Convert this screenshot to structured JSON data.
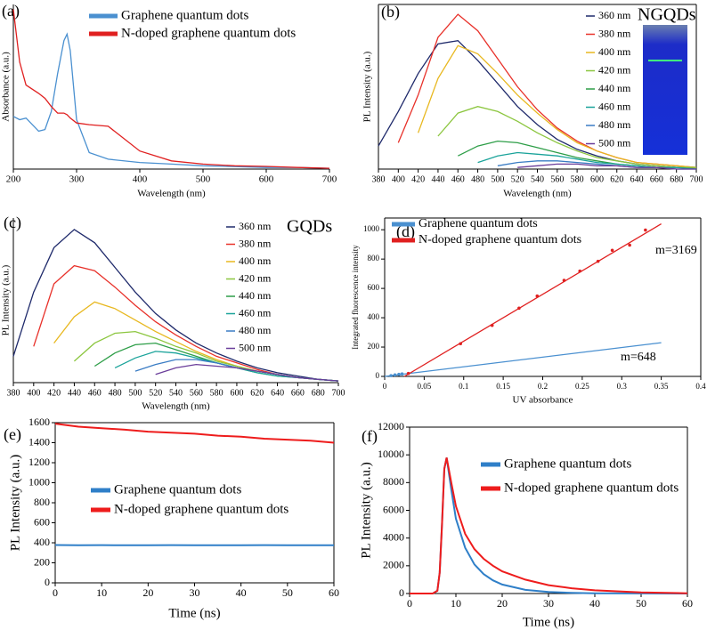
{
  "chart_data": [
    {
      "type": "line",
      "panel_label": "(a)",
      "xlabel": "Wavelength (nm)",
      "ylabel": "Absorbance (a.u.)",
      "x": [
        200,
        210,
        220,
        240,
        250,
        260,
        270,
        280,
        285,
        290,
        300,
        320,
        350,
        400,
        450,
        500,
        550,
        600,
        650,
        700
      ],
      "xlim": [
        200,
        700
      ],
      "xticks": [
        200,
        300,
        400,
        500,
        600,
        700
      ],
      "ylim": [
        0,
        100
      ],
      "series": [
        {
          "name": "Graphene quantum dots",
          "color": "#4a90d0",
          "values": [
            32,
            30,
            31,
            23,
            24,
            35,
            58,
            78,
            82,
            72,
            30,
            10,
            6,
            4,
            3,
            2,
            1.5,
            1,
            1,
            0.5
          ]
        },
        {
          "name": "N-doped graphene quantum dots",
          "color": "#e02020",
          "values": [
            97,
            65,
            51,
            46,
            43,
            38,
            34,
            34,
            33,
            31,
            28,
            27,
            26,
            11,
            5,
            3,
            2,
            1.6,
            1,
            0.5
          ]
        }
      ]
    },
    {
      "type": "line",
      "panel_label": "(b)",
      "xlabel": "Wavelength (nm)",
      "ylabel": "PL Intensity (a.u.)",
      "annotations": [
        {
          "text": "NGQDs",
          "color": "#000000"
        }
      ],
      "x": [
        380,
        400,
        420,
        440,
        460,
        480,
        500,
        520,
        540,
        560,
        580,
        600,
        620,
        640,
        660,
        680,
        700
      ],
      "xlim": [
        380,
        700
      ],
      "xticks": [
        380,
        400,
        420,
        440,
        460,
        480,
        500,
        520,
        540,
        560,
        580,
        600,
        620,
        640,
        660,
        680,
        700
      ],
      "ylim": [
        0,
        100
      ],
      "series": [
        {
          "name": "360 nm",
          "color": "#1f2a6b",
          "values": [
            14,
            35,
            58,
            76,
            78,
            66,
            52,
            38,
            27,
            18,
            12,
            8,
            5,
            3,
            2,
            1,
            1
          ]
        },
        {
          "name": "380 nm",
          "color": "#e8312a",
          "values": [
            null,
            16,
            45,
            80,
            94,
            84,
            67,
            50,
            36,
            25,
            17,
            11,
            7,
            4,
            3,
            2,
            1
          ]
        },
        {
          "name": "400 nm",
          "color": "#e8b820",
          "values": [
            null,
            null,
            22,
            55,
            75,
            70,
            58,
            45,
            34,
            24,
            16,
            11,
            7,
            4,
            3,
            2,
            1
          ]
        },
        {
          "name": "420 nm",
          "color": "#8cc63f",
          "values": [
            null,
            null,
            null,
            20,
            34,
            38,
            35,
            29,
            22,
            16,
            11,
            7,
            5,
            3,
            2,
            1,
            1
          ]
        },
        {
          "name": "440 nm",
          "color": "#2e9e48",
          "values": [
            null,
            null,
            null,
            null,
            8,
            14,
            17,
            16,
            13,
            10,
            7,
            5,
            3,
            2,
            1,
            1,
            0
          ]
        },
        {
          "name": "460 nm",
          "color": "#1aa39a",
          "values": [
            null,
            null,
            null,
            null,
            null,
            4,
            8,
            10,
            9,
            8,
            6,
            4,
            3,
            2,
            1,
            1,
            0
          ]
        },
        {
          "name": "480 nm",
          "color": "#3a7cc4",
          "values": [
            null,
            null,
            null,
            null,
            null,
            null,
            2,
            4,
            5,
            5,
            4,
            3,
            2,
            1,
            1,
            0,
            0
          ]
        },
        {
          "name": "500 nm",
          "color": "#6a3d9a",
          "values": [
            null,
            null,
            null,
            null,
            null,
            null,
            null,
            1,
            2,
            3,
            3,
            2,
            2,
            1,
            1,
            0,
            0
          ]
        }
      ]
    },
    {
      "type": "line",
      "panel_label": "(c)",
      "xlabel": "Wavelength (nm)",
      "ylabel": "PL Intensity (a.u.)",
      "annotations": [
        {
          "text": "GQDs",
          "color": "#000000"
        }
      ],
      "x": [
        380,
        400,
        420,
        440,
        460,
        480,
        500,
        520,
        540,
        560,
        580,
        600,
        620,
        640,
        660,
        680,
        700
      ],
      "xlim": [
        380,
        700
      ],
      "xticks": [
        380,
        400,
        420,
        440,
        460,
        480,
        500,
        520,
        540,
        560,
        580,
        600,
        620,
        640,
        660,
        680,
        700
      ],
      "ylim": [
        0,
        100
      ],
      "series": [
        {
          "name": "360 nm",
          "color": "#1f2a6b",
          "values": [
            16,
            55,
            82,
            93,
            85,
            70,
            55,
            42,
            32,
            24,
            18,
            13,
            9,
            6,
            4,
            2,
            1
          ]
        },
        {
          "name": "380 nm",
          "color": "#e8312a",
          "values": [
            null,
            22,
            60,
            71,
            68,
            58,
            47,
            37,
            29,
            22,
            16,
            12,
            8,
            5,
            3,
            2,
            1
          ]
        },
        {
          "name": "400 nm",
          "color": "#e8b820",
          "values": [
            null,
            null,
            24,
            40,
            49,
            45,
            38,
            31,
            25,
            19,
            14,
            10,
            7,
            5,
            3,
            2,
            1
          ]
        },
        {
          "name": "420 nm",
          "color": "#8cc63f",
          "values": [
            null,
            null,
            null,
            13,
            24,
            30,
            31,
            27,
            22,
            18,
            13,
            10,
            7,
            5,
            3,
            2,
            1
          ]
        },
        {
          "name": "440 nm",
          "color": "#2e9e48",
          "values": [
            null,
            null,
            null,
            null,
            10,
            18,
            23,
            24,
            20,
            16,
            12,
            9,
            6,
            4,
            3,
            2,
            1
          ]
        },
        {
          "name": "460 nm",
          "color": "#1aa39a",
          "values": [
            null,
            null,
            null,
            null,
            null,
            9,
            15,
            19,
            18,
            15,
            12,
            9,
            6,
            4,
            3,
            2,
            1
          ]
        },
        {
          "name": "480 nm",
          "color": "#3a7cc4",
          "values": [
            null,
            null,
            null,
            null,
            null,
            null,
            7,
            11,
            14,
            14,
            12,
            9,
            7,
            5,
            3,
            2,
            1
          ]
        },
        {
          "name": "500 nm",
          "color": "#6a3d9a",
          "values": [
            null,
            null,
            null,
            null,
            null,
            null,
            null,
            5,
            9,
            11,
            10,
            9,
            7,
            5,
            3,
            2,
            1
          ]
        }
      ]
    },
    {
      "type": "scatter",
      "panel_label": "(d)",
      "xlabel": "UV absorbance",
      "ylabel": "Integrated fluorescence intensity",
      "annotations": [
        {
          "text": "m=3169",
          "color": "#e02020"
        },
        {
          "text": "m=648",
          "color": "#4a90d0"
        }
      ],
      "xlim": [
        0,
        0.4
      ],
      "xticks": [
        0,
        0.05,
        0.1,
        0.15,
        0.2,
        0.25,
        0.3,
        0.35,
        0.4
      ],
      "ylim": [
        0,
        1080
      ],
      "yticks": [
        0,
        200,
        400,
        600,
        800,
        1000
      ],
      "series": [
        {
          "name": "Graphene quantum dots",
          "color": "#4a90d0",
          "x": [
            0.008,
            0.013,
            0.018,
            0.022
          ],
          "values": [
            5,
            10,
            14,
            17
          ],
          "fit_x": [
            0,
            0.35
          ],
          "fit_values": [
            0,
            230
          ]
        },
        {
          "name": "N-doped graphene quantum dots",
          "color": "#e02020",
          "x": [
            0.03,
            0.096,
            0.136,
            0.17,
            0.193,
            0.227,
            0.247,
            0.27,
            0.288,
            0.31,
            0.33
          ],
          "values": [
            20,
            223,
            348,
            465,
            548,
            655,
            718,
            785,
            860,
            895,
            998
          ],
          "fit_x": [
            0.025,
            0.35
          ],
          "fit_values": [
            0,
            1040
          ]
        }
      ]
    },
    {
      "type": "line",
      "panel_label": "(e)",
      "xlabel": "Time (ns)",
      "ylabel": "PL Intensity (a.u.)",
      "x": [
        0,
        5,
        10,
        15,
        20,
        25,
        30,
        35,
        40,
        45,
        50,
        55,
        60
      ],
      "xlim": [
        0,
        60
      ],
      "xticks": [
        0,
        10,
        20,
        30,
        40,
        50,
        60
      ],
      "ylim": [
        0,
        1600
      ],
      "yticks": [
        0,
        200,
        400,
        600,
        800,
        1000,
        1200,
        1400,
        1600
      ],
      "series": [
        {
          "name": "Graphene quantum dots",
          "color": "#2f7fc8",
          "values": [
            378,
            376,
            377,
            375,
            376,
            377,
            376,
            375,
            376,
            377,
            375,
            376,
            375
          ]
        },
        {
          "name": "N-doped graphene quantum dots",
          "color": "#ee1c1c",
          "values": [
            1590,
            1560,
            1545,
            1530,
            1510,
            1500,
            1490,
            1470,
            1460,
            1440,
            1430,
            1420,
            1400
          ]
        }
      ]
    },
    {
      "type": "line",
      "panel_label": "(f)",
      "xlabel": "Time (ns)",
      "ylabel": "PL Intensity (a.u.)",
      "x": [
        0,
        5,
        6,
        6.5,
        7,
        7.5,
        8,
        9,
        10,
        12,
        14,
        16,
        18,
        20,
        25,
        30,
        35,
        40,
        50,
        60
      ],
      "xlim": [
        0,
        60
      ],
      "xticks": [
        0,
        10,
        20,
        30,
        40,
        50,
        60
      ],
      "ylim": [
        0,
        12000
      ],
      "yticks": [
        0,
        2000,
        4000,
        6000,
        8000,
        10000,
        12000
      ],
      "series": [
        {
          "name": "Graphene quantum dots",
          "color": "#2f7fc8",
          "values": [
            0,
            0,
            200,
            1500,
            5000,
            9000,
            9800,
            7500,
            5400,
            3300,
            2100,
            1400,
            950,
            650,
            260,
            110,
            50,
            20,
            5,
            0
          ]
        },
        {
          "name": "N-doped graphene quantum dots",
          "color": "#ee1c1c",
          "values": [
            0,
            0,
            200,
            1500,
            5000,
            9000,
            9800,
            8000,
            6300,
            4300,
            3200,
            2500,
            2000,
            1600,
            1000,
            600,
            380,
            230,
            80,
            20
          ]
        }
      ]
    }
  ]
}
